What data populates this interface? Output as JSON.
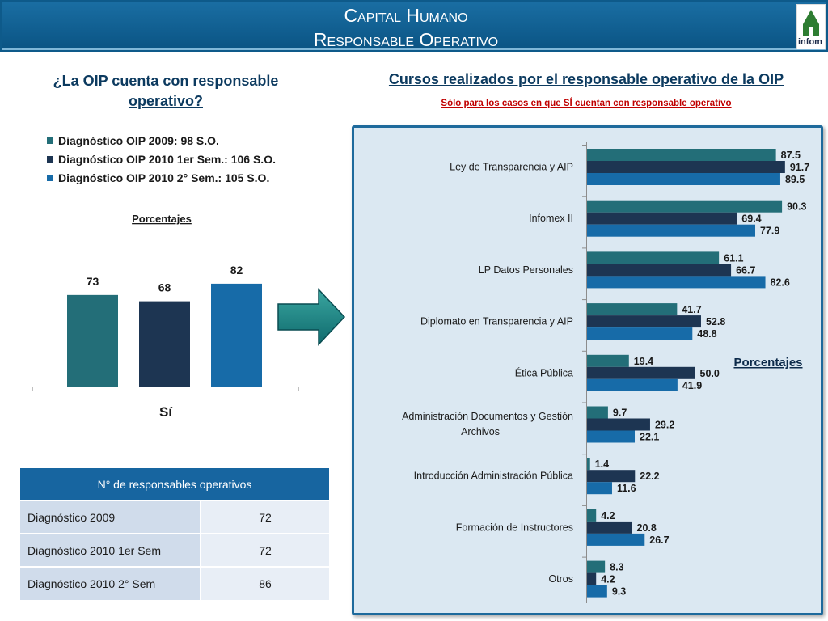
{
  "header": {
    "title_line1": "Capital Humano",
    "title_line2": "Responsable Operativo",
    "logo_text": "infom"
  },
  "left": {
    "title": "¿La OIP cuenta con responsable operativo?",
    "legend": [
      {
        "label": "Diagnóstico OIP 2009: 98 S.O.",
        "color": "#236e78"
      },
      {
        "label": "Diagnóstico OIP 2010 1er Sem.: 106 S.O.",
        "color": "#1d3552"
      },
      {
        "label": "Diagnóstico OIP 2010 2° Sem.: 105 S.O.",
        "color": "#176ba8"
      }
    ],
    "table": {
      "header": "N° de responsables operativos",
      "rows": [
        {
          "label": "Diagnóstico 2009",
          "value": "72"
        },
        {
          "label": "Diagnóstico 2010 1er Sem",
          "value": "72"
        },
        {
          "label": "Diagnóstico 2010 2° Sem",
          "value": "86"
        }
      ]
    }
  },
  "right": {
    "title": "Cursos realizados por el responsable operativo de la OIP",
    "subtitle": "Sólo para los casos en que SÍ cuentan con responsable operativo"
  },
  "chart_data": [
    {
      "type": "bar",
      "title": "Porcentajes",
      "categories": [
        "Sí"
      ],
      "colors": [
        "#236e78",
        "#1d3552",
        "#176ba8"
      ],
      "series": [
        {
          "name": "Diagnóstico OIP 2009: 98 S.O.",
          "values": [
            73
          ]
        },
        {
          "name": "Diagnóstico OIP 2010 1er Sem.: 106 S.O.",
          "values": [
            68
          ]
        },
        {
          "name": "Diagnóstico OIP 2010 2° Sem.: 105 S.O.",
          "values": [
            82
          ]
        }
      ],
      "ylim": [
        0,
        100
      ]
    },
    {
      "type": "bar",
      "orientation": "horizontal",
      "title": "Porcentajes",
      "categories": [
        "Ley de Transparencia y AIP",
        "Infomex II",
        "LP Datos Personales",
        "Diplomato en Transparencia y AIP",
        "Ética Pública",
        "Administración Documentos y Gestión Archivos",
        "Introducción Administración Pública",
        "Formación de Instructores",
        "Otros"
      ],
      "colors": [
        "#236e78",
        "#1d3552",
        "#176ba8"
      ],
      "series": [
        {
          "name": "Diagnóstico OIP 2009: 98 S.O.",
          "values": [
            87.5,
            90.3,
            61.1,
            41.7,
            19.4,
            9.7,
            1.4,
            4.2,
            8.3
          ]
        },
        {
          "name": "Diagnóstico OIP 2010 1er Sem.: 106 S.O.",
          "values": [
            91.7,
            69.4,
            66.7,
            52.8,
            50.0,
            29.2,
            22.2,
            20.8,
            4.2
          ]
        },
        {
          "name": "Diagnóstico OIP 2010 2° Sem.: 105 S.O.",
          "values": [
            89.5,
            77.9,
            82.6,
            48.8,
            41.9,
            22.1,
            11.6,
            26.7,
            9.3
          ]
        }
      ],
      "xlim": [
        0,
        100
      ]
    }
  ]
}
